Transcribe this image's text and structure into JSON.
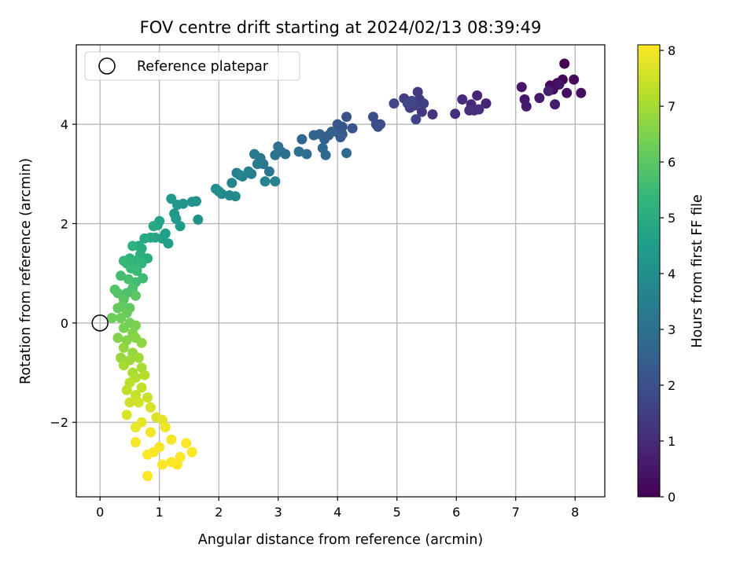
{
  "chart_data": {
    "type": "scatter",
    "title": "FOV centre drift starting at 2024/02/13 08:39:49",
    "xlabel": "Angular distance from reference (arcmin)",
    "ylabel": "Rotation from reference (arcmin)",
    "xlim": [
      -0.4,
      8.5
    ],
    "ylim": [
      -3.5,
      5.6
    ],
    "xticks": [
      0,
      1,
      2,
      3,
      4,
      5,
      6,
      7,
      8
    ],
    "xtick_labels": [
      "0",
      "1",
      "2",
      "3",
      "4",
      "5",
      "6",
      "7",
      "8"
    ],
    "yticks": [
      -2,
      0,
      2,
      4
    ],
    "ytick_labels": [
      "−2",
      "0",
      "2",
      "4"
    ],
    "grid": true,
    "legend": {
      "position": "top-left",
      "entries": [
        {
          "label": "Reference platepar",
          "marker": "hollow-circle",
          "x": 0,
          "y": 0
        }
      ]
    },
    "colorbar": {
      "label": "Hours from first FF file",
      "range": [
        0,
        8.1
      ],
      "ticks": [
        0,
        1,
        2,
        3,
        4,
        5,
        6,
        7,
        8
      ],
      "tick_labels": [
        "0",
        "1",
        "2",
        "3",
        "4",
        "5",
        "6",
        "7",
        "8"
      ],
      "colormap": "viridis"
    },
    "colormap_stops": [
      "#440154",
      "#482878",
      "#3e4989",
      "#31688e",
      "#26828e",
      "#1f9e89",
      "#35b779",
      "#6ece58",
      "#b5de2b",
      "#fde725"
    ],
    "series": [
      {
        "points": [
          [
            7.82,
            5.22,
            0.0
          ],
          [
            7.7,
            4.83,
            0.05
          ],
          [
            7.79,
            4.9,
            0.1
          ],
          [
            7.58,
            4.78,
            0.15
          ],
          [
            7.98,
            4.9,
            0.2
          ],
          [
            7.63,
            4.7,
            0.25
          ],
          [
            7.86,
            4.63,
            0.3
          ],
          [
            8.1,
            4.63,
            0.35
          ],
          [
            7.73,
            4.8,
            0.4
          ],
          [
            7.1,
            4.75,
            0.45
          ],
          [
            7.15,
            4.5,
            0.5
          ],
          [
            7.4,
            4.53,
            0.55
          ],
          [
            7.18,
            4.36,
            0.6
          ],
          [
            7.66,
            4.4,
            0.65
          ],
          [
            7.55,
            4.67,
            0.7
          ],
          [
            6.5,
            4.42,
            0.8
          ],
          [
            6.35,
            4.58,
            0.85
          ],
          [
            6.25,
            4.4,
            0.9
          ],
          [
            6.1,
            4.5,
            0.95
          ],
          [
            6.3,
            4.28,
            1.0
          ],
          [
            6.38,
            4.3,
            1.05
          ],
          [
            5.98,
            4.21,
            1.1
          ],
          [
            6.22,
            4.28,
            1.15
          ],
          [
            5.6,
            4.2,
            1.2
          ],
          [
            5.42,
            4.25,
            1.3
          ],
          [
            5.35,
            4.65,
            1.35
          ],
          [
            5.38,
            4.5,
            1.4
          ],
          [
            5.12,
            4.52,
            1.45
          ],
          [
            5.45,
            4.42,
            1.5
          ],
          [
            5.3,
            4.38,
            1.55
          ],
          [
            5.22,
            4.33,
            1.6
          ],
          [
            5.32,
            4.1,
            1.65
          ],
          [
            5.18,
            4.42,
            1.7
          ],
          [
            4.95,
            4.42,
            1.75
          ],
          [
            5.25,
            4.47,
            1.8
          ],
          [
            4.72,
            4.0,
            1.85
          ],
          [
            4.65,
            4.0,
            1.9
          ],
          [
            4.6,
            4.15,
            1.95
          ],
          [
            4.68,
            3.95,
            2.0
          ],
          [
            4.15,
            4.15,
            2.05
          ],
          [
            4.25,
            3.92,
            2.1
          ],
          [
            4.08,
            3.95,
            2.15
          ],
          [
            4.0,
            4.0,
            2.2
          ],
          [
            3.98,
            3.85,
            2.25
          ],
          [
            4.05,
            3.74,
            2.3
          ],
          [
            4.08,
            3.8,
            2.35
          ],
          [
            3.85,
            3.78,
            2.4
          ],
          [
            3.78,
            3.7,
            2.45
          ],
          [
            3.9,
            3.85,
            2.5
          ],
          [
            3.7,
            3.8,
            2.55
          ],
          [
            3.6,
            3.78,
            2.6
          ],
          [
            3.4,
            3.7,
            2.65
          ],
          [
            3.75,
            3.52,
            2.7
          ],
          [
            3.8,
            3.38,
            2.75
          ],
          [
            4.15,
            3.42,
            2.8
          ],
          [
            3.48,
            3.4,
            2.85
          ],
          [
            3.35,
            3.45,
            2.9
          ],
          [
            3.12,
            3.4,
            2.95
          ],
          [
            3.0,
            3.55,
            3.0
          ],
          [
            3.05,
            3.45,
            3.05
          ],
          [
            2.95,
            3.38,
            3.1
          ],
          [
            2.75,
            3.2,
            3.15
          ],
          [
            2.85,
            3.05,
            3.2
          ],
          [
            2.7,
            3.32,
            3.25
          ],
          [
            2.6,
            3.4,
            3.3
          ],
          [
            2.65,
            3.2,
            3.35
          ],
          [
            2.55,
            3.0,
            3.4
          ],
          [
            2.4,
            2.95,
            3.45
          ],
          [
            2.3,
            3.02,
            3.5
          ],
          [
            2.95,
            2.85,
            3.55
          ],
          [
            2.78,
            2.85,
            3.6
          ],
          [
            2.5,
            3.05,
            3.65
          ],
          [
            2.35,
            2.98,
            3.7
          ],
          [
            2.22,
            2.82,
            3.75
          ],
          [
            2.05,
            2.6,
            3.8
          ],
          [
            2.18,
            2.57,
            3.85
          ],
          [
            2.28,
            2.55,
            3.9
          ],
          [
            2.0,
            2.65,
            3.95
          ],
          [
            1.95,
            2.7,
            4.0
          ],
          [
            1.62,
            2.45,
            4.05
          ],
          [
            1.65,
            2.08,
            4.1
          ],
          [
            1.55,
            2.44,
            4.15
          ],
          [
            1.4,
            2.4,
            4.2
          ],
          [
            1.3,
            2.38,
            4.25
          ],
          [
            1.25,
            2.2,
            4.3
          ],
          [
            1.2,
            2.5,
            4.35
          ],
          [
            1.28,
            2.1,
            4.4
          ],
          [
            1.35,
            1.95,
            4.45
          ],
          [
            1.15,
            1.6,
            4.5
          ],
          [
            1.1,
            1.8,
            4.55
          ],
          [
            1.05,
            1.7,
            4.6
          ],
          [
            1.0,
            2.05,
            4.65
          ],
          [
            0.97,
            1.97,
            4.7
          ],
          [
            0.93,
            1.72,
            4.75
          ],
          [
            0.85,
            1.72,
            4.8
          ],
          [
            0.9,
            1.95,
            4.85
          ],
          [
            0.75,
            1.7,
            4.9
          ],
          [
            0.7,
            1.5,
            4.95
          ],
          [
            0.65,
            1.55,
            5.0
          ],
          [
            0.8,
            1.3,
            5.05
          ],
          [
            0.68,
            1.38,
            5.1
          ],
          [
            0.55,
            1.55,
            5.15
          ],
          [
            0.6,
            1.25,
            5.2
          ],
          [
            0.7,
            1.2,
            5.25
          ],
          [
            0.5,
            1.3,
            5.3
          ],
          [
            0.45,
            1.2,
            5.35
          ],
          [
            0.4,
            1.25,
            5.4
          ],
          [
            0.52,
            1.1,
            5.45
          ],
          [
            0.62,
            1.05,
            5.5
          ],
          [
            0.72,
            0.9,
            5.55
          ],
          [
            0.6,
            0.82,
            5.6
          ],
          [
            0.35,
            0.95,
            5.65
          ],
          [
            0.48,
            0.88,
            5.7
          ],
          [
            0.55,
            0.7,
            5.75
          ],
          [
            0.45,
            0.6,
            5.8
          ],
          [
            0.3,
            0.6,
            5.85
          ],
          [
            0.25,
            0.67,
            5.9
          ],
          [
            0.4,
            0.48,
            5.95
          ],
          [
            0.6,
            0.55,
            6.0
          ],
          [
            0.38,
            0.35,
            6.05
          ],
          [
            0.5,
            0.3,
            6.1
          ],
          [
            0.3,
            0.3,
            6.15
          ],
          [
            0.45,
            0.2,
            6.2
          ],
          [
            0.2,
            0.1,
            6.25
          ],
          [
            0.35,
            0.1,
            6.3
          ],
          [
            0.5,
            0.0,
            6.35
          ],
          [
            0.4,
            -0.1,
            6.4
          ],
          [
            0.6,
            -0.05,
            6.45
          ],
          [
            0.55,
            -0.2,
            6.5
          ],
          [
            0.3,
            -0.3,
            6.55
          ],
          [
            0.45,
            -0.35,
            6.6
          ],
          [
            0.6,
            -0.3,
            6.65
          ],
          [
            0.7,
            -0.4,
            6.7
          ],
          [
            0.4,
            -0.5,
            6.75
          ],
          [
            0.55,
            -0.6,
            6.8
          ],
          [
            0.35,
            -0.7,
            6.85
          ],
          [
            0.5,
            -0.75,
            6.9
          ],
          [
            0.65,
            -0.7,
            6.95
          ],
          [
            0.4,
            -0.85,
            7.0
          ],
          [
            0.7,
            -0.9,
            7.05
          ],
          [
            0.55,
            -1.0,
            7.1
          ],
          [
            0.6,
            -1.1,
            7.15
          ],
          [
            0.75,
            -1.05,
            7.2
          ],
          [
            0.5,
            -1.2,
            7.25
          ],
          [
            0.45,
            -1.35,
            7.3
          ],
          [
            0.7,
            -1.3,
            7.35
          ],
          [
            0.6,
            -1.45,
            7.4
          ],
          [
            0.8,
            -1.5,
            7.45
          ],
          [
            0.5,
            -1.6,
            7.5
          ],
          [
            0.65,
            -1.6,
            7.55
          ],
          [
            0.85,
            -1.7,
            7.6
          ],
          [
            0.45,
            -1.85,
            7.65
          ],
          [
            0.95,
            -1.9,
            7.7
          ],
          [
            1.05,
            -1.95,
            7.75
          ],
          [
            0.7,
            -2.0,
            7.8
          ],
          [
            0.6,
            -2.1,
            7.85
          ],
          [
            1.1,
            -2.1,
            7.9
          ],
          [
            0.85,
            -2.2,
            7.95
          ],
          [
            0.6,
            -2.4,
            8.0
          ],
          [
            1.2,
            -2.35,
            8.02
          ],
          [
            1.0,
            -2.5,
            8.04
          ],
          [
            0.9,
            -2.6,
            8.05
          ],
          [
            1.45,
            -2.42,
            8.06
          ],
          [
            1.55,
            -2.6,
            8.07
          ],
          [
            1.35,
            -2.7,
            8.07
          ],
          [
            1.2,
            -2.8,
            8.08
          ],
          [
            1.05,
            -2.85,
            8.08
          ],
          [
            1.3,
            -2.85,
            8.09
          ],
          [
            0.8,
            -2.65,
            8.09
          ],
          [
            0.8,
            -3.08,
            8.1
          ]
        ]
      }
    ]
  }
}
